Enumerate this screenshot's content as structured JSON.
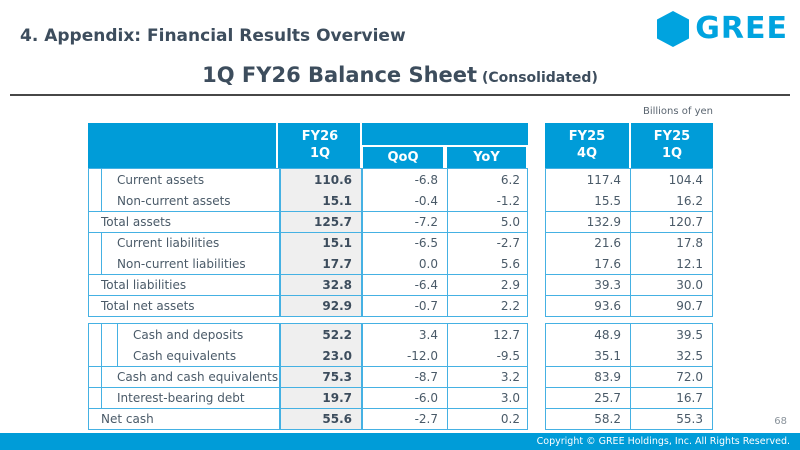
{
  "slide": {
    "title": "4. Appendix: Financial Results Overview",
    "subtitle": "1Q FY26 Balance Sheet",
    "subtitle_suffix": " (Consolidated)",
    "unit_note": "Billions of yen",
    "logo_text": "GREE",
    "page_number": "68",
    "footer": "Copyright © GREE Holdings, Inc. All Rights Reserved."
  },
  "colors": {
    "header_blue": "#009CD8",
    "table_border_blue": "#45B1E3",
    "highlight_column_bg": "#EFEFEF",
    "logo_blue": "#00A3DF",
    "heading_text": "#3D4D5D"
  },
  "table": {
    "headers": {
      "fy26": {
        "line1": "FY26",
        "line2": "1Q"
      },
      "qoq": "QoQ",
      "yoy": "YoY",
      "fy25_4q": {
        "line1": "FY25",
        "line2": "4Q"
      },
      "fy25_1q": {
        "line1": "FY25",
        "line2": "1Q"
      }
    },
    "blocks": [
      {
        "rows": [
          {
            "label": "Current assets",
            "indent": 1,
            "border_top": false,
            "fy26": "110.6",
            "qoq": "-6.8",
            "yoy": "6.2",
            "fy25_4q": "117.4",
            "fy25_1q": "104.4"
          },
          {
            "label": "Non-current assets",
            "indent": 1,
            "border_top": false,
            "fy26": "15.1",
            "qoq": "-0.4",
            "yoy": "-1.2",
            "fy25_4q": "15.5",
            "fy25_1q": "16.2"
          },
          {
            "label": "Total assets",
            "indent": 0,
            "border_top": true,
            "fy26": "125.7",
            "qoq": "-7.2",
            "yoy": "5.0",
            "fy25_4q": "132.9",
            "fy25_1q": "120.7"
          },
          {
            "label": "Current liabilities",
            "indent": 1,
            "border_top": true,
            "fy26": "15.1",
            "qoq": "-6.5",
            "yoy": "-2.7",
            "fy25_4q": "21.6",
            "fy25_1q": "17.8"
          },
          {
            "label": "Non-current liabilities",
            "indent": 1,
            "border_top": false,
            "fy26": "17.7",
            "qoq": "0.0",
            "yoy": "5.6",
            "fy25_4q": "17.6",
            "fy25_1q": "12.1"
          },
          {
            "label": "Total liabilities",
            "indent": 0,
            "border_top": true,
            "fy26": "32.8",
            "qoq": "-6.4",
            "yoy": "2.9",
            "fy25_4q": "39.3",
            "fy25_1q": "30.0"
          },
          {
            "label": "Total net assets",
            "indent": 0,
            "border_top": true,
            "fy26": "92.9",
            "qoq": "-0.7",
            "yoy": "2.2",
            "fy25_4q": "93.6",
            "fy25_1q": "90.7"
          }
        ]
      },
      {
        "rows": [
          {
            "label": "Cash and deposits",
            "indent": 2,
            "border_top": false,
            "fy26": "52.2",
            "qoq": "3.4",
            "yoy": "12.7",
            "fy25_4q": "48.9",
            "fy25_1q": "39.5"
          },
          {
            "label": "Cash equivalents",
            "indent": 2,
            "border_top": false,
            "fy26": "23.0",
            "qoq": "-12.0",
            "yoy": "-9.5",
            "fy25_4q": "35.1",
            "fy25_1q": "32.5"
          },
          {
            "label": "Cash and cash equivalents",
            "indent": 1,
            "border_top": true,
            "fy26": "75.3",
            "qoq": "-8.7",
            "yoy": "3.2",
            "fy25_4q": "83.9",
            "fy25_1q": "72.0"
          },
          {
            "label": "Interest-bearing debt",
            "indent": 1,
            "border_top": true,
            "fy26": "19.7",
            "qoq": "-6.0",
            "yoy": "3.0",
            "fy25_4q": "25.7",
            "fy25_1q": "16.7"
          },
          {
            "label": "Net cash",
            "indent": 0,
            "border_top": true,
            "fy26": "55.6",
            "qoq": "-2.7",
            "yoy": "0.2",
            "fy25_4q": "58.2",
            "fy25_1q": "55.3"
          }
        ]
      }
    ]
  }
}
